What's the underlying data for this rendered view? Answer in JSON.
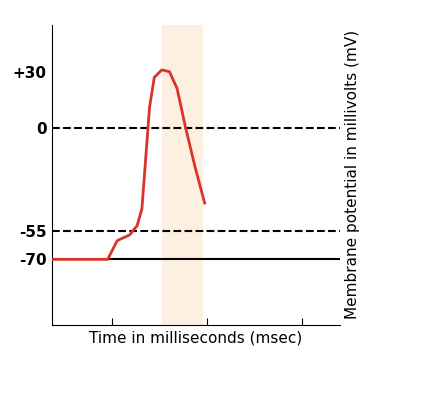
{
  "chart_data": {
    "type": "line",
    "x_label": "Time in milliseconds (msec)",
    "y_label": "Membrane potential in millivolts (mV)",
    "x": [
      0.37,
      0.96,
      1.06,
      1.19,
      1.27,
      1.32,
      1.36,
      1.4,
      1.45,
      1.53,
      1.61,
      1.69,
      1.78,
      1.88,
      1.98
    ],
    "values": [
      -70,
      -70,
      -60,
      -57,
      -52,
      -43,
      -16,
      11,
      27,
      31,
      30,
      21,
      0,
      -21,
      -40
    ],
    "color": "#d9342b",
    "xlim": [
      0.37,
      3.4
    ],
    "xticks": [
      1,
      2,
      3
    ],
    "ylim": [
      -105,
      55
    ],
    "yticks": [
      {
        "value": 30,
        "label": "+30"
      },
      0,
      -55,
      -70
    ],
    "tick_labels": "y",
    "reference_lines": [
      {
        "value": 0,
        "line_style": "dashed"
      },
      {
        "value": -55,
        "line_style": "dashed"
      },
      {
        "value": -70,
        "line_style": "solid"
      }
    ],
    "highlight_span": [
      1.53,
      1.96
    ],
    "highlight_color": "#fdf0e0"
  }
}
